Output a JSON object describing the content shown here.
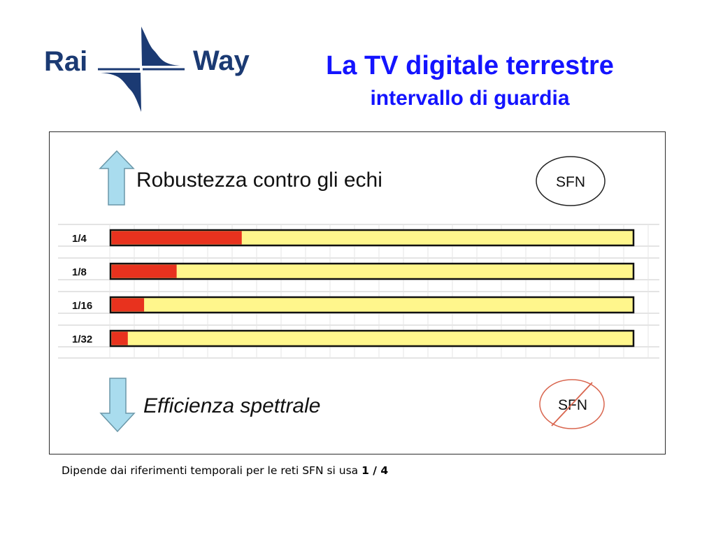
{
  "logo": {
    "left_word": "Rai",
    "right_word": "Way",
    "brand_color": "#1b3a73"
  },
  "header": {
    "title": "La TV digitale terrestre",
    "subtitle": "intervallo di guardia",
    "color": "#1414ff"
  },
  "diagram": {
    "top_label": "Robustezza contro gli echi",
    "top_badge": "SFN",
    "bottom_label": "Efficienza spettrale",
    "bottom_badge": "SFN",
    "bottom_badge_crossed": true,
    "bar_fill_color": "#fff68c",
    "guard_color": "#e8321e",
    "arrow_color": "#a9dcee",
    "rows": [
      {
        "label": "1/4",
        "fraction": 0.25
      },
      {
        "label": "1/8",
        "fraction": 0.125
      },
      {
        "label": "1/16",
        "fraction": 0.0625
      },
      {
        "label": "1/32",
        "fraction": 0.03125
      }
    ]
  },
  "footnote": {
    "text": "Dipende dai riferimenti temporali per le reti SFN si usa ",
    "bold": "1 / 4"
  }
}
